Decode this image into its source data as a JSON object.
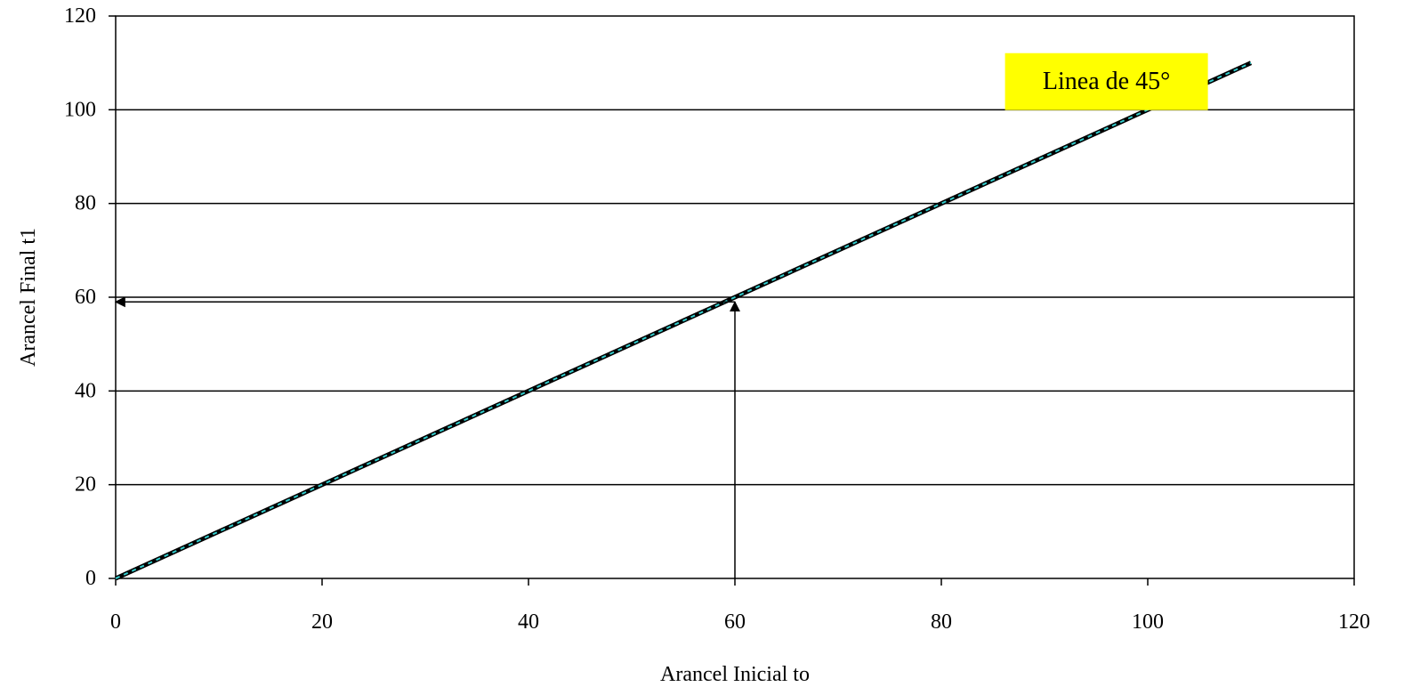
{
  "chart_data": {
    "type": "line",
    "title": "",
    "xlabel": "Arancel Inicial to",
    "ylabel": "Arancel Final t1",
    "xlim": [
      0,
      120
    ],
    "ylim": [
      0,
      120
    ],
    "xticks": [
      0,
      20,
      40,
      60,
      80,
      100,
      120
    ],
    "yticks": [
      0,
      20,
      40,
      60,
      80,
      100,
      120
    ],
    "grid": "horizontal",
    "series": [
      {
        "x": [
          0,
          110
        ],
        "y": [
          0,
          110
        ],
        "colors": {
          "line": "#000000",
          "dash": "#33cccc"
        }
      }
    ],
    "annotations": {
      "label": {
        "text": "Linea de 45°",
        "anchor": [
          96,
          106
        ],
        "background": "#ffff00"
      },
      "vertical_arrow": {
        "x": 60,
        "from_y": 0,
        "to_y": 59
      },
      "horizontal_arrow": {
        "y": 59,
        "from_x": 60,
        "to_x": 0
      }
    }
  }
}
